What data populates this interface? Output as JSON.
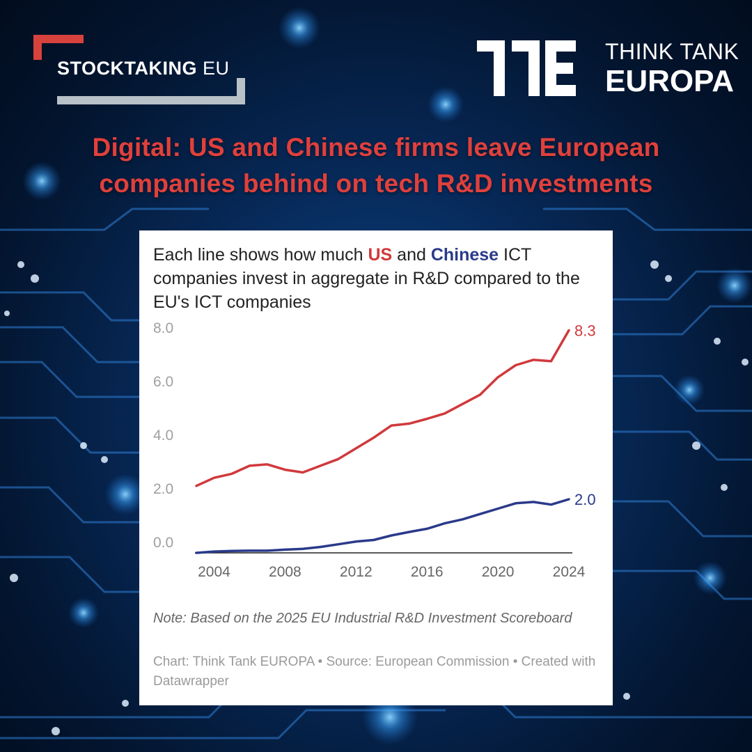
{
  "logos": {
    "stocktaking": {
      "bold": "STOCKTAKING",
      "light": " EU"
    },
    "think_tank": {
      "line1": "THINK TANK",
      "line2": "EUROPA"
    }
  },
  "headline": {
    "line1": "Digital: US and Chinese firms leave European",
    "line2": "companies behind on tech R&D investments"
  },
  "chart_card": {
    "title_pre": "Each line shows how much ",
    "title_us": "US",
    "title_and": " and ",
    "title_cn": "Chinese",
    "title_post": " ICT companies invest in aggregate in R&D compared to the EU's ICT companies",
    "note": "Note: Based on the 2025 EU Industrial R&D Investment Scoreboard",
    "credit": "Chart: Think Tank EUROPA • Source: European Commission • Created with Datawrapper"
  },
  "colors": {
    "us_line": "#d0393c",
    "china_line": "#2a3a8a",
    "headline": "#e0403c",
    "axis_label": "#a0a0a0"
  },
  "chart_data": {
    "type": "line",
    "title": "Each line shows how much US and Chinese ICT companies invest in aggregate in R&D compared to the EU's ICT companies",
    "xlabel": "",
    "ylabel": "",
    "xlim": [
      2003,
      2024
    ],
    "ylim": [
      0,
      8
    ],
    "x_ticks": [
      2004,
      2008,
      2012,
      2016,
      2020,
      2024
    ],
    "x_tick_labels": [
      "2004",
      "2008",
      "2012",
      "2016",
      "2020",
      "2024"
    ],
    "y_ticks": [
      0,
      2,
      4,
      6,
      8
    ],
    "y_tick_labels": [
      "0.0",
      "2.0",
      "4.0",
      "6.0",
      "8.0"
    ],
    "grid": false,
    "x": [
      2003,
      2004,
      2005,
      2006,
      2007,
      2008,
      2009,
      2010,
      2011,
      2012,
      2013,
      2014,
      2015,
      2016,
      2017,
      2018,
      2019,
      2020,
      2021,
      2022,
      2023,
      2024
    ],
    "series": [
      {
        "name": "US",
        "color": "#d0393c",
        "end_label": "8.3",
        "values": [
          2.5,
          2.8,
          2.95,
          3.25,
          3.3,
          3.1,
          3.0,
          3.25,
          3.5,
          3.9,
          4.3,
          4.75,
          4.82,
          5.0,
          5.2,
          5.55,
          5.9,
          6.55,
          7.0,
          7.2,
          7.15,
          8.3
        ]
      },
      {
        "name": "China",
        "color": "#2a3a8a",
        "end_label": "2.0",
        "values": [
          0.0,
          0.05,
          0.07,
          0.08,
          0.08,
          0.12,
          0.15,
          0.22,
          0.32,
          0.42,
          0.48,
          0.65,
          0.78,
          0.9,
          1.1,
          1.25,
          1.45,
          1.65,
          1.85,
          1.9,
          1.8,
          2.0
        ]
      }
    ]
  }
}
